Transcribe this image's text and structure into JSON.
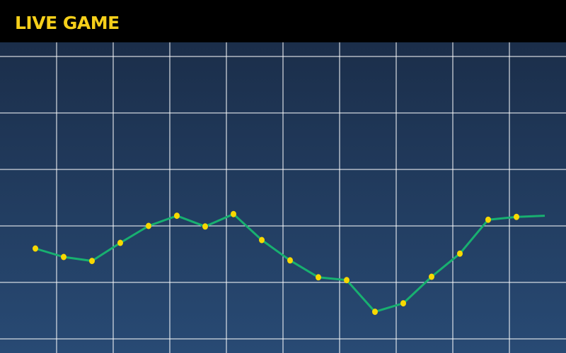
{
  "header": {
    "title": "LIVE GAME",
    "title_color": "#f5cf1a"
  },
  "chart_data": {
    "type": "line",
    "grid": true,
    "grid_color": "#ffffff",
    "background": [
      "#1b2e4a",
      "#284a74"
    ],
    "line_color": "#18b070",
    "marker_color": "#f8d800",
    "x": [
      0,
      1,
      2,
      3,
      4,
      5,
      6,
      7,
      8,
      9,
      10,
      11,
      12,
      13,
      14,
      15,
      16,
      17,
      18
    ],
    "values": [
      1.6,
      1.45,
      1.38,
      1.7,
      2.0,
      2.18,
      1.99,
      2.21,
      1.75,
      1.39,
      1.09,
      1.04,
      0.48,
      0.63,
      1.1,
      1.51,
      2.11,
      2.16,
      2.18
    ],
    "markers_on_last_point": false,
    "ylim": [
      0,
      5
    ]
  }
}
